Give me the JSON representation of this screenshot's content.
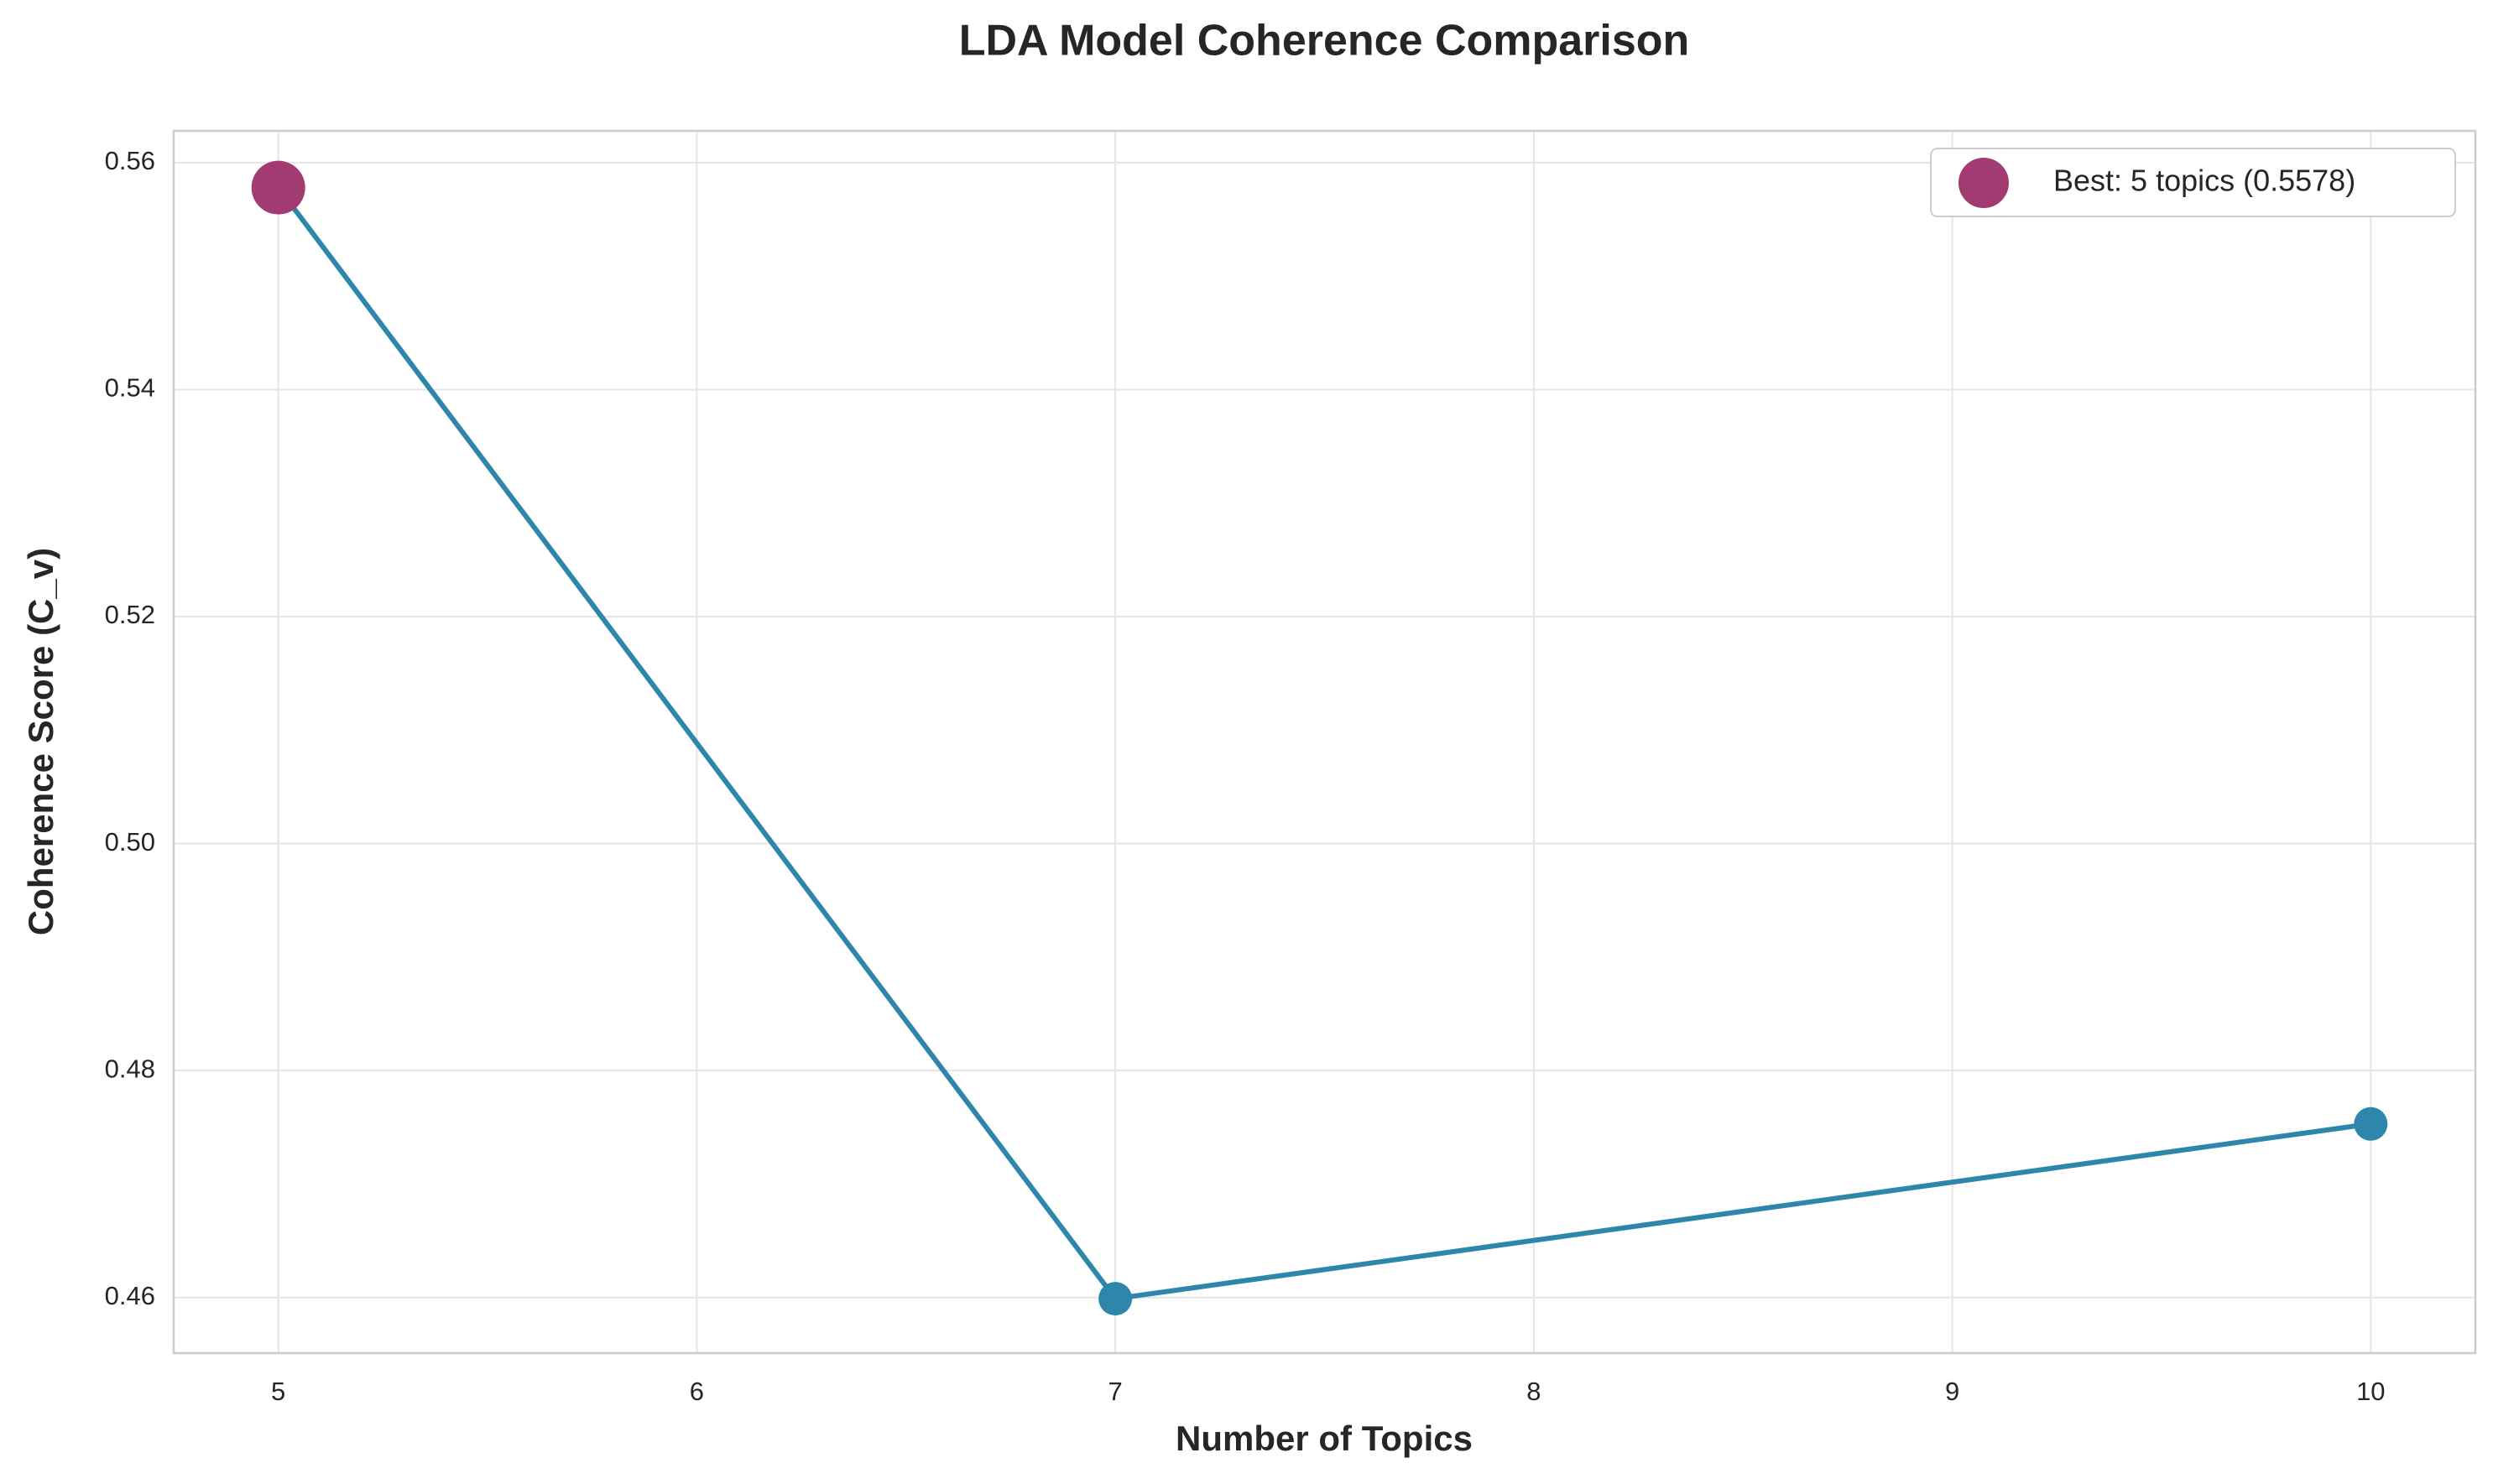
{
  "chart_data": {
    "type": "line",
    "title": "LDA Model Coherence Comparison",
    "x_label": "Number of Topics",
    "y_label": "Coherence Score (C_v)",
    "series": [
      {
        "x": [
          5,
          7,
          10
        ],
        "values": [
          0.5578,
          0.4599,
          0.4753
        ],
        "color": "#2e86ab"
      },
      {
        "name": "Best: 5 topics (0.5578)",
        "x": [
          5
        ],
        "values": [
          0.5578
        ],
        "color": "#a23b72",
        "marker_only": true
      }
    ],
    "xlim": [
      4.75,
      10.25
    ],
    "xticks": [
      5,
      6,
      7,
      8,
      9,
      10
    ],
    "ylim": [
      0.4551,
      0.5628
    ],
    "yticks": [
      {
        "value": 0.46,
        "label": "0.46"
      },
      {
        "value": 0.48,
        "label": "0.48"
      },
      {
        "value": 0.5,
        "label": "0.50"
      },
      {
        "value": 0.52,
        "label": "0.52"
      },
      {
        "value": 0.54,
        "label": "0.54"
      },
      {
        "value": 0.56,
        "label": "0.56"
      }
    ],
    "grid": true,
    "legend": "upper right"
  }
}
